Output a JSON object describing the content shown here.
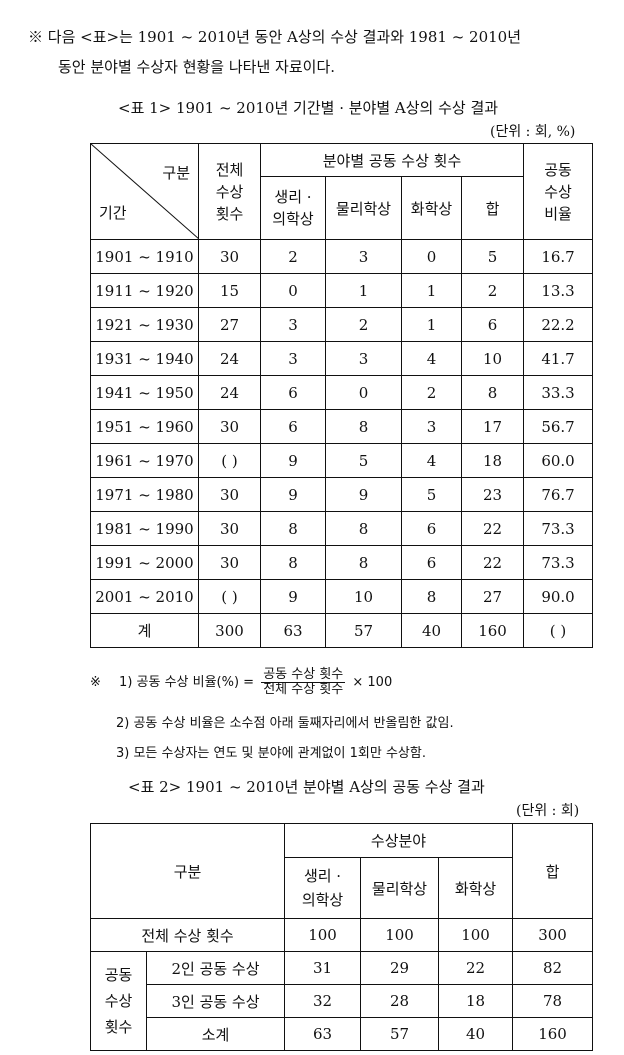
{
  "intro": {
    "line1": "※ 다음 <표>는 1901 ~ 2010년 동안 A상의 수상 결과와 1981 ~ 2010년",
    "line2": "동안 분야별 수상자 현황을 나타낸 자료이다."
  },
  "table1": {
    "caption": "<표 1> 1901 ~ 2010년 기간별 · 분야별 A상의 수상 결과",
    "unit": "(단위 : 회, %)",
    "header": {
      "gubun": "구분",
      "period": "기간",
      "total": [
        "전체",
        "수상",
        "횟수"
      ],
      "field_group": "분야별 공동 수상 횟수",
      "physiology": [
        "생리 ·",
        "의학상"
      ],
      "physics": "물리학상",
      "chemistry": "화학상",
      "sum": "합",
      "ratio": [
        "공동",
        "수상",
        "비율"
      ]
    },
    "rows": [
      [
        "1901 ~ 1910",
        "30",
        "2",
        "3",
        "0",
        "5",
        "16.7"
      ],
      [
        "1911 ~ 1920",
        "15",
        "0",
        "1",
        "1",
        "2",
        "13.3"
      ],
      [
        "1921 ~ 1930",
        "27",
        "3",
        "2",
        "1",
        "6",
        "22.2"
      ],
      [
        "1931 ~ 1940",
        "24",
        "3",
        "3",
        "4",
        "10",
        "41.7"
      ],
      [
        "1941 ~ 1950",
        "24",
        "6",
        "0",
        "2",
        "8",
        "33.3"
      ],
      [
        "1951 ~ 1960",
        "30",
        "6",
        "8",
        "3",
        "17",
        "56.7"
      ],
      [
        "1961 ~ 1970",
        "(     )",
        "9",
        "5",
        "4",
        "18",
        "60.0"
      ],
      [
        "1971 ~ 1980",
        "30",
        "9",
        "9",
        "5",
        "23",
        "76.7"
      ],
      [
        "1981 ~ 1990",
        "30",
        "8",
        "8",
        "6",
        "22",
        "73.3"
      ],
      [
        "1991 ~ 2000",
        "30",
        "8",
        "8",
        "6",
        "22",
        "73.3"
      ],
      [
        "2001 ~ 2010",
        "(     )",
        "9",
        "10",
        "8",
        "27",
        "90.0"
      ],
      [
        "계",
        "300",
        "63",
        "57",
        "40",
        "160",
        "(     )"
      ]
    ]
  },
  "notes": {
    "mark": "※",
    "n1_prefix": "1) 공동 수상 비율(%) =",
    "n1_num": "공동 수상 횟수",
    "n1_den": "전체 수상 횟수",
    "n1_suffix": "× 100",
    "n2": "2) 공동 수상 비율은 소수점 아래 둘째자리에서 반올림한 값임.",
    "n3": "3) 모든 수상자는 연도 및 분야에 관계없이 1회만 수상함."
  },
  "table2": {
    "caption": "<표 2> 1901 ~ 2010년 분야별 A상의 공동 수상 결과",
    "unit": "(단위 : 회)",
    "header": {
      "gubun": "구분",
      "field_group": "수상분야",
      "physiology": [
        "생리 ·",
        "의학상"
      ],
      "physics": "물리학상",
      "chemistry": "화학상",
      "sum": "합"
    },
    "total_row": {
      "label": "전체 수상 횟수",
      "values": [
        "100",
        "100",
        "100",
        "300"
      ]
    },
    "joint_label": [
      "공동",
      "수상",
      "횟수"
    ],
    "joint_rows": [
      {
        "label": "2인 공동 수상",
        "values": [
          "31",
          "29",
          "22",
          "82"
        ]
      },
      {
        "label": "3인 공동 수상",
        "values": [
          "32",
          "28",
          "18",
          "78"
        ]
      },
      {
        "label": "소계",
        "values": [
          "63",
          "57",
          "40",
          "160"
        ]
      }
    ]
  }
}
